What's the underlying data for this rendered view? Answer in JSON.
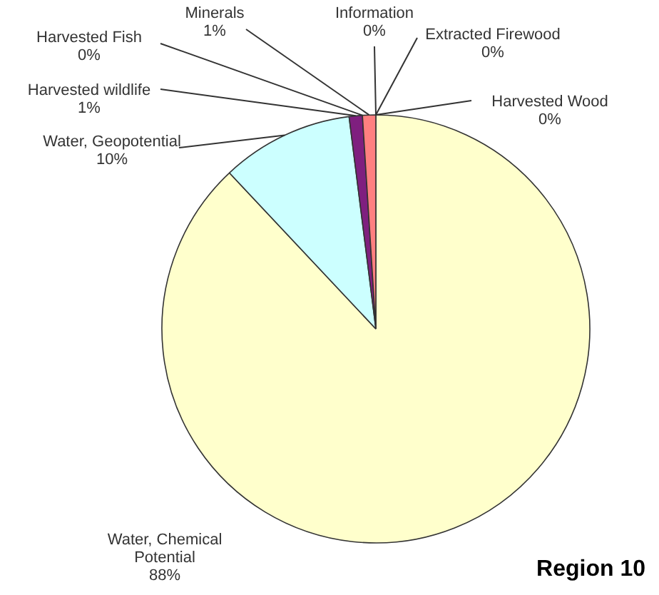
{
  "chart_data": {
    "type": "pie",
    "title": "Region 10",
    "categories": [
      "Water, Chemical Potential",
      "Water, Geopotential",
      "Harvested wildlife",
      "Harvested Fish",
      "Minerals",
      "Information",
      "Extracted Firewood",
      "Harvested Wood"
    ],
    "values": [
      88,
      10,
      1,
      0,
      1,
      0,
      0,
      0
    ],
    "colors": [
      "#ffffcc",
      "#ccffff",
      "#7f1f7f",
      "#993366",
      "#ff8080",
      "#660066",
      "#660066",
      "#660066"
    ],
    "value_labels": [
      "88%",
      "10%",
      "1%",
      "0%",
      "1%",
      "0%",
      "0%",
      "0%"
    ]
  }
}
